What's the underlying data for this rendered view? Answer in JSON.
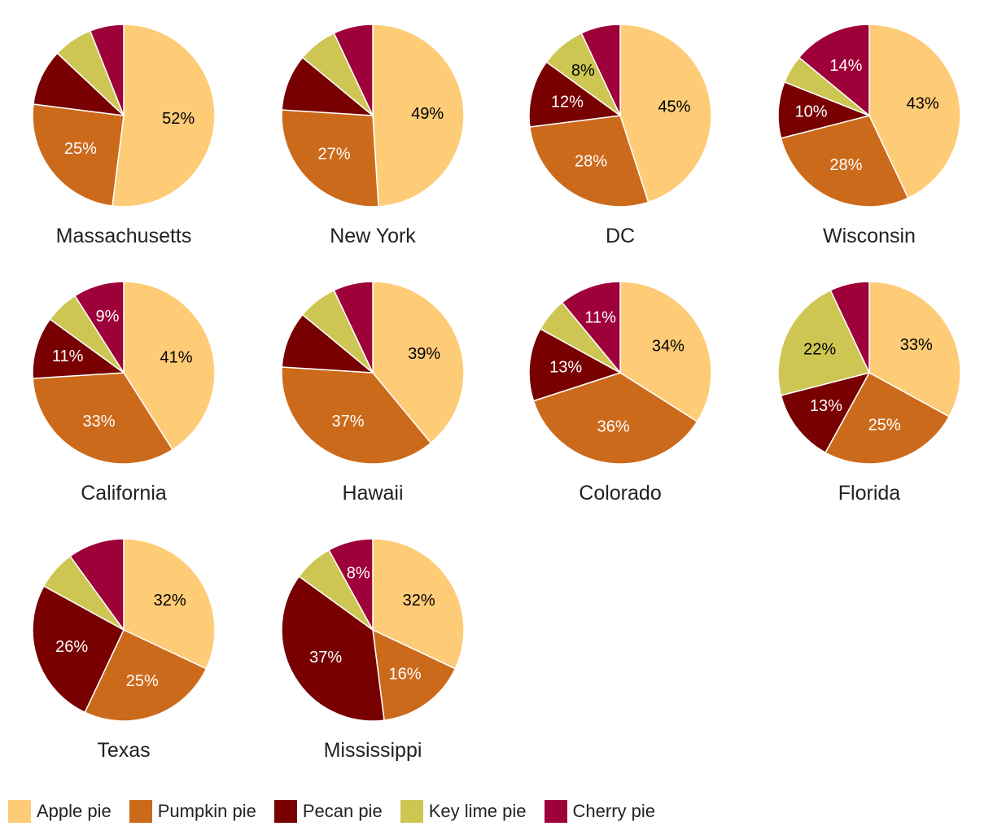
{
  "chart_data": {
    "type": "pie",
    "categories": [
      "Apple pie",
      "Pumpkin pie",
      "Pecan pie",
      "Key lime pie",
      "Cherry pie"
    ],
    "colors": [
      "#FECB77",
      "#CC6A1C",
      "#780000",
      "#CDC653",
      "#9E003A"
    ],
    "label_colors": [
      "#000000",
      "#ffffff",
      "#ffffff",
      "#000000",
      "#ffffff"
    ],
    "pies": [
      {
        "name": "Massachusetts",
        "values": [
          52,
          25,
          10,
          7,
          6
        ],
        "labels": [
          "52%",
          "25%",
          "",
          "",
          ""
        ]
      },
      {
        "name": "New York",
        "values": [
          49,
          27,
          10,
          7,
          7
        ],
        "labels": [
          "49%",
          "27%",
          "",
          "",
          ""
        ]
      },
      {
        "name": "DC",
        "values": [
          45,
          28,
          12,
          8,
          7
        ],
        "labels": [
          "45%",
          "28%",
          "12%",
          "8%",
          ""
        ]
      },
      {
        "name": "Wisconsin",
        "values": [
          43,
          28,
          10,
          5,
          14
        ],
        "labels": [
          "43%",
          "28%",
          "10%",
          "",
          "14%"
        ]
      },
      {
        "name": "California",
        "values": [
          41,
          33,
          11,
          6,
          9
        ],
        "labels": [
          "41%",
          "33%",
          "11%",
          "",
          "9%"
        ]
      },
      {
        "name": "Hawaii",
        "values": [
          39,
          37,
          10,
          7,
          7
        ],
        "labels": [
          "39%",
          "37%",
          "",
          "",
          ""
        ]
      },
      {
        "name": "Colorado",
        "values": [
          34,
          36,
          13,
          6,
          11
        ],
        "labels": [
          "34%",
          "36%",
          "13%",
          "",
          "11%"
        ]
      },
      {
        "name": "Florida",
        "values": [
          33,
          25,
          13,
          22,
          7
        ],
        "labels": [
          "33%",
          "25%",
          "13%",
          "22%",
          ""
        ]
      },
      {
        "name": "Texas",
        "values": [
          32,
          25,
          26,
          7,
          10
        ],
        "labels": [
          "32%",
          "25%",
          "26%",
          "",
          ""
        ]
      },
      {
        "name": "Mississippi",
        "values": [
          32,
          16,
          37,
          7,
          8
        ],
        "labels": [
          "32%",
          "16%",
          "37%",
          "",
          "8%"
        ]
      }
    ]
  }
}
